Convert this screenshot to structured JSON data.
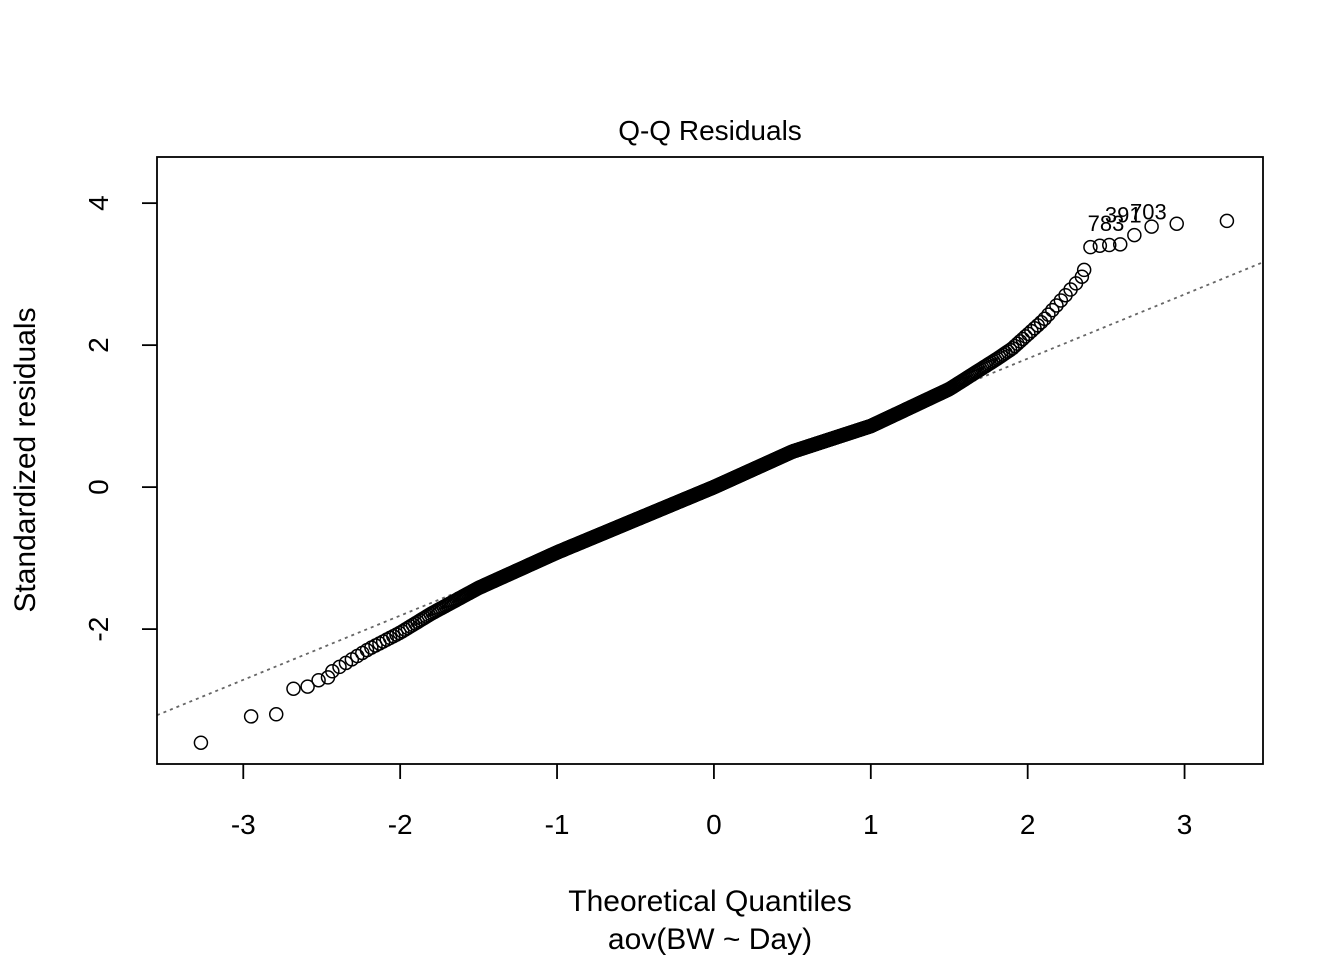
{
  "chart_data": {
    "type": "scatter",
    "title": "Q-Q Residuals",
    "xlabel": "Theoretical Quantiles",
    "xlabel_sub": "aov(BW ~ Day)",
    "ylabel": "Standardized residuals",
    "xlim": [
      -3.55,
      3.5
    ],
    "ylim": [
      -3.9,
      4.65
    ],
    "x_ticks": [
      -3,
      -2,
      -1,
      0,
      1,
      2,
      3
    ],
    "y_ticks": [
      -2,
      0,
      2,
      4
    ],
    "x_tick_labels": [
      "-3",
      "-2",
      "-1",
      "0",
      "1",
      "2",
      "3"
    ],
    "y_tick_labels": [
      "-2",
      "0",
      "2",
      "4"
    ],
    "grid": false,
    "reference_line": {
      "style": "dotted",
      "color": "#666666",
      "intercept": 0.0,
      "slope": 0.905
    },
    "point_style": "open-circle",
    "n_points": 1000,
    "outliers": [
      {
        "x": -3.27,
        "y": -3.6
      },
      {
        "x": -2.95,
        "y": -3.23
      },
      {
        "x": -2.79,
        "y": -3.2
      },
      {
        "x": -2.68,
        "y": -2.84
      },
      {
        "x": -2.59,
        "y": -2.81
      },
      {
        "x": -2.52,
        "y": -2.72
      },
      {
        "x": -2.46,
        "y": -2.68
      },
      {
        "x": 2.36,
        "y": 3.06
      },
      {
        "x": 2.4,
        "y": 3.38
      },
      {
        "x": 2.46,
        "y": 3.4
      },
      {
        "x": 2.52,
        "y": 3.41
      },
      {
        "x": 2.59,
        "y": 3.42
      },
      {
        "x": 2.68,
        "y": 3.55
      },
      {
        "x": 2.79,
        "y": 3.67
      },
      {
        "x": 2.95,
        "y": 3.71
      },
      {
        "x": 3.27,
        "y": 3.75
      }
    ],
    "deviation_profile": {
      "x": [
        -2.4,
        -2.2,
        -2.0,
        -1.8,
        -1.5,
        -1.0,
        -0.5,
        0.0,
        0.5,
        1.0,
        1.5,
        1.8,
        1.9,
        2.0,
        2.1,
        2.2,
        2.3
      ],
      "y": [
        -2.55,
        -2.28,
        -2.05,
        -1.78,
        -1.42,
        -0.92,
        -0.46,
        0.0,
        0.5,
        0.86,
        1.38,
        1.8,
        1.95,
        2.15,
        2.35,
        2.6,
        2.85
      ]
    },
    "point_labels": [
      {
        "text": "783",
        "x": 2.68,
        "y": 3.55
      },
      {
        "text": "391",
        "x": 2.79,
        "y": 3.67
      },
      {
        "text": "703",
        "x": 2.95,
        "y": 3.71
      }
    ]
  }
}
